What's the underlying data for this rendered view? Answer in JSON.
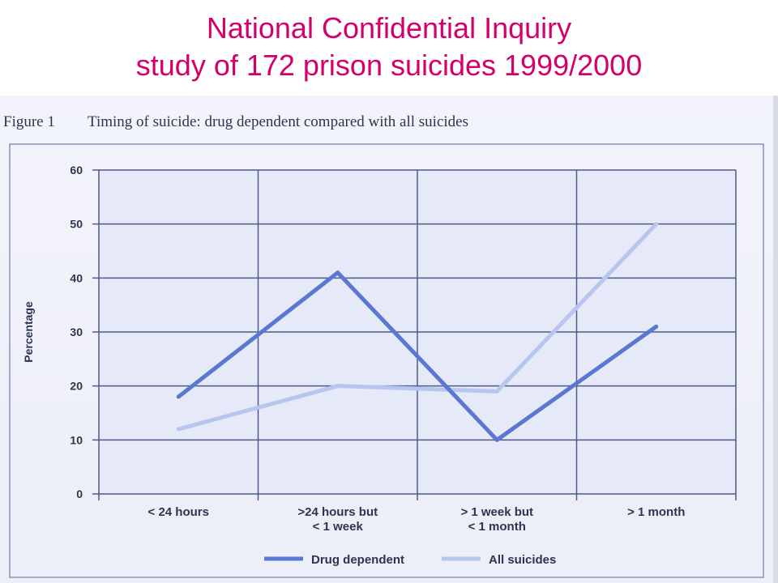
{
  "slide": {
    "title_line1": "National Confidential Inquiry",
    "title_line2": "study of 172 prison suicides 1999/2000"
  },
  "figure": {
    "number": "Figure 1",
    "caption": "Timing of suicide: drug dependent compared with all suicides"
  },
  "colors": {
    "title": "#d4006a",
    "drug_dependent": "#5a78d2",
    "all_suicides": "#b7c6ef",
    "plot_bg": "#e6eaf8",
    "grid": "#4d5a8a",
    "text": "#2c3550"
  },
  "chart_data": {
    "type": "line",
    "title": "Timing of suicide: drug dependent compared with all suicides",
    "xlabel": "",
    "ylabel": "Percentage",
    "ylim": [
      0,
      60
    ],
    "yticks": [
      0,
      10,
      20,
      30,
      40,
      50,
      60
    ],
    "grid": true,
    "legend_position": "bottom",
    "categories": [
      [
        "< 24 hours"
      ],
      [
        ">24 hours but",
        "< 1 week"
      ],
      [
        "> 1 week but",
        "< 1 month"
      ],
      [
        "> 1 month"
      ]
    ],
    "series": [
      {
        "name": "Drug dependent",
        "values": [
          18,
          41,
          10,
          31
        ]
      },
      {
        "name": "All suicides",
        "values": [
          12,
          20,
          19,
          50
        ]
      }
    ]
  }
}
